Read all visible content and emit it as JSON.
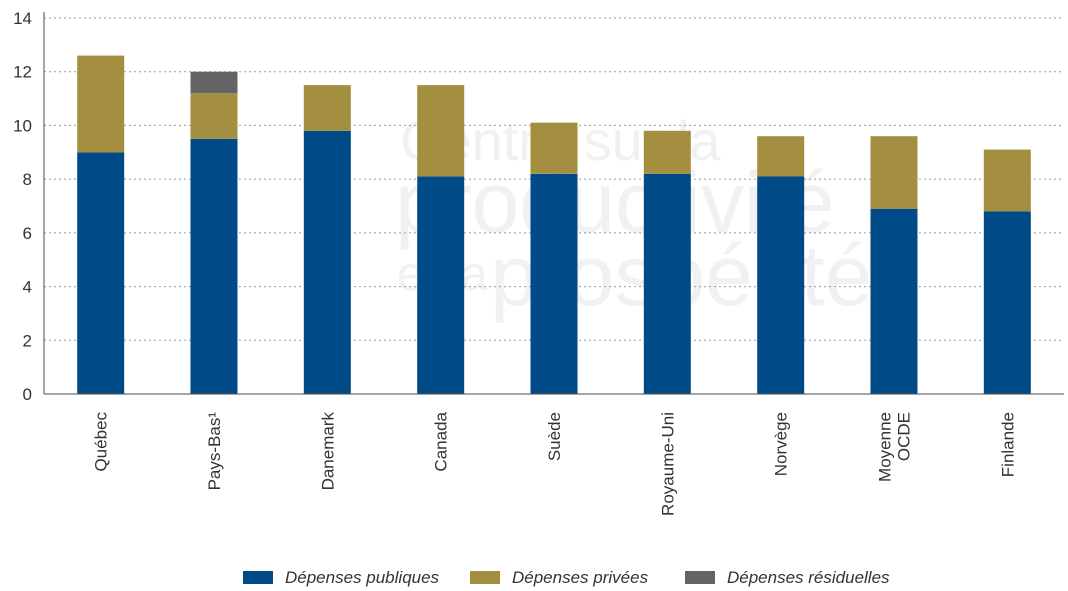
{
  "chart_data": {
    "type": "bar",
    "stacked": true,
    "title": "",
    "xlabel": "",
    "ylabel": "",
    "ylim": [
      0,
      14
    ],
    "yticks": [
      0,
      2,
      4,
      6,
      8,
      10,
      12,
      14
    ],
    "grid": true,
    "legend_position": "bottom",
    "categories": [
      "Québec",
      "Pays-Bas¹",
      "Danemark",
      "Canada",
      "Suède",
      "Royaume-Uni",
      "Norvège",
      "Moyenne OCDE",
      "Finlande"
    ],
    "series": [
      {
        "name": "Dépenses publiques",
        "color": "#004b87",
        "values": [
          9.0,
          9.5,
          9.8,
          8.1,
          8.2,
          8.2,
          8.1,
          6.9,
          6.8
        ]
      },
      {
        "name": "Dépenses privées",
        "color": "#a38f3f",
        "values": [
          3.6,
          1.7,
          1.7,
          3.4,
          1.9,
          1.6,
          1.5,
          2.7,
          2.3
        ]
      },
      {
        "name": "Dépenses résiduelles",
        "color": "#636466",
        "values": [
          0,
          0.8,
          0,
          0,
          0,
          0,
          0,
          0,
          0
        ]
      }
    ]
  },
  "watermark": {
    "text_line_1": "Centre sur la",
    "text_line_2": "productivité",
    "text_line_3_small": "et la",
    "text_line_3": "prospérité"
  }
}
